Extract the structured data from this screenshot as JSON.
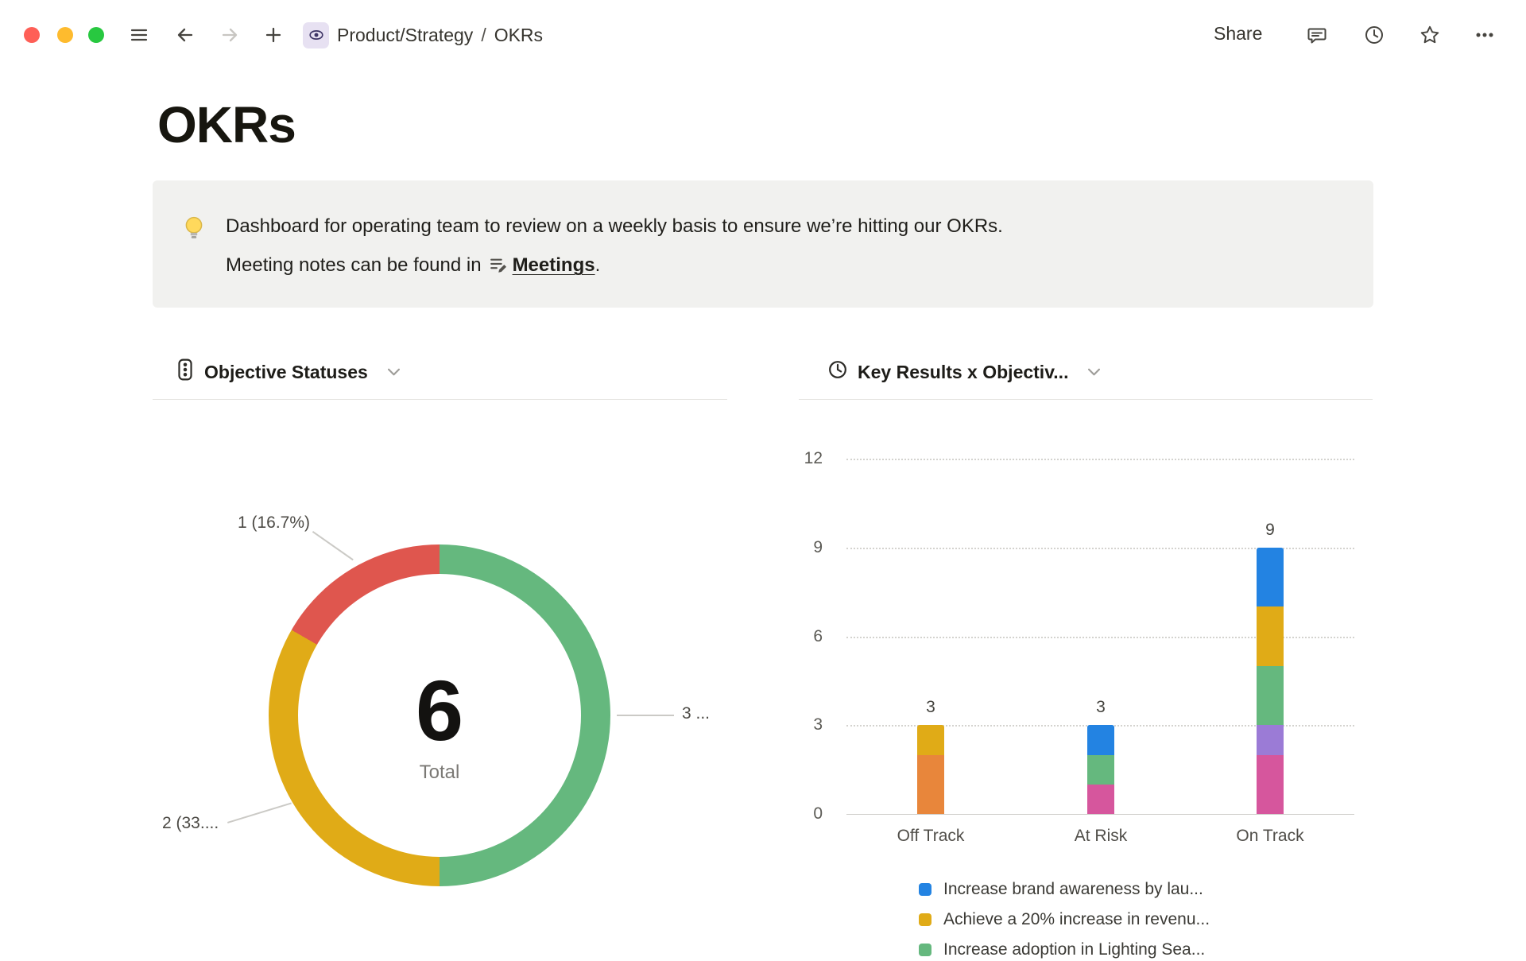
{
  "titlebar": {
    "breadcrumb": {
      "parent": "Product/Strategy",
      "separator": "/",
      "current": "OKRs"
    },
    "share_label": "Share"
  },
  "page": {
    "title": "OKRs",
    "callout": {
      "line1": "Dashboard for operating team to review on a weekly basis to ensure we’re hitting our OKRs.",
      "line2_prefix": "Meeting notes can be found in",
      "link_label": "Meetings",
      "line2_suffix": "."
    }
  },
  "sections": [
    {
      "header": "Objective Statuses"
    },
    {
      "header": "Key Results x Objectiv..."
    }
  ],
  "chart_data": [
    {
      "type": "pie",
      "variant": "donut",
      "title": "Objective Statuses",
      "center_value": "6",
      "center_label": "Total",
      "start_angle_deg": 0,
      "direction": "clockwise",
      "slices": [
        {
          "label": "3 ...",
          "value": 3,
          "color": "#65b87e"
        },
        {
          "label": "2 (33....",
          "value": 2,
          "color": "#e0ab17"
        },
        {
          "label": "1 (16.7%)",
          "value": 1,
          "color": "#df564e"
        }
      ]
    },
    {
      "type": "bar",
      "stacked": true,
      "title": "Key Results x Objectiv...",
      "categories": [
        "Off Track",
        "At Risk",
        "On Track"
      ],
      "bar_totals": [
        3,
        3,
        9
      ],
      "ylim": [
        0,
        12
      ],
      "yticks": [
        0,
        3,
        6,
        9,
        12
      ],
      "grid": "horizontal-dotted",
      "legend_position": "bottom",
      "series": [
        {
          "name": "",
          "color": "#e8863b",
          "values": [
            2,
            0,
            0
          ]
        },
        {
          "name": "",
          "color": "#d6569d",
          "values": [
            0,
            1,
            2
          ]
        },
        {
          "name": "",
          "color": "#9b7bd6",
          "values": [
            0,
            0,
            1
          ]
        },
        {
          "name": "Increase adoption in Lighting Sea...",
          "color": "#65b87e",
          "values": [
            0,
            1,
            2
          ]
        },
        {
          "name": "Achieve a 20% increase in revenu...",
          "color": "#e0ab17",
          "values": [
            1,
            0,
            2
          ]
        },
        {
          "name": "Increase brand awareness by lau...",
          "color": "#2383e2",
          "values": [
            0,
            1,
            2
          ]
        }
      ],
      "legend": [
        {
          "color": "#2383e2",
          "label": "Increase brand awareness by lau..."
        },
        {
          "color": "#e0ab17",
          "label": "Achieve a 20% increase in revenu..."
        },
        {
          "color": "#65b87e",
          "label": "Increase adoption in Lighting Sea..."
        }
      ]
    }
  ]
}
